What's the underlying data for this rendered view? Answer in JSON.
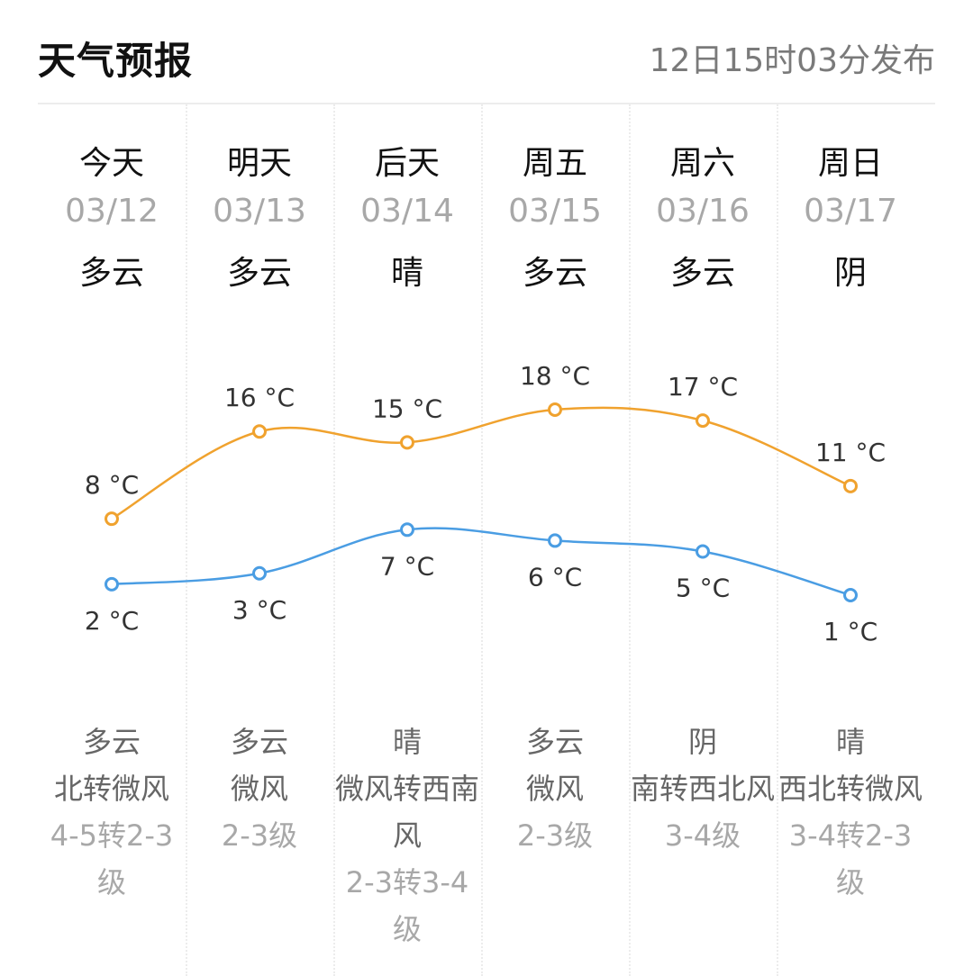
{
  "header": {
    "title": "天气预报",
    "published": "12日15时03分发布"
  },
  "colors": {
    "high": "#f0a22e",
    "low": "#4a9de3"
  },
  "days": [
    {
      "name": "今天",
      "date": "03/12",
      "day_cond": "多云",
      "high": 8,
      "high_label": "8 °C",
      "low": 2,
      "low_label": "2 °C",
      "night_cond": "多云",
      "wind": "北转微风",
      "level": "4-5转2-3级"
    },
    {
      "name": "明天",
      "date": "03/13",
      "day_cond": "多云",
      "high": 16,
      "high_label": "16 °C",
      "low": 3,
      "low_label": "3 °C",
      "night_cond": "多云",
      "wind": "微风",
      "level": "2-3级"
    },
    {
      "name": "后天",
      "date": "03/14",
      "day_cond": "晴",
      "high": 15,
      "high_label": "15 °C",
      "low": 7,
      "low_label": "7 °C",
      "night_cond": "晴",
      "wind": "微风转西南风",
      "level": "2-3转3-4级"
    },
    {
      "name": "周五",
      "date": "03/15",
      "day_cond": "多云",
      "high": 18,
      "high_label": "18 °C",
      "low": 6,
      "low_label": "6 °C",
      "night_cond": "多云",
      "wind": "微风",
      "level": "2-3级"
    },
    {
      "name": "周六",
      "date": "03/16",
      "day_cond": "多云",
      "high": 17,
      "high_label": "17 °C",
      "low": 5,
      "low_label": "5 °C",
      "night_cond": "阴",
      "wind": "南转西北风",
      "level": "3-4级"
    },
    {
      "name": "周日",
      "date": "03/17",
      "day_cond": "阴",
      "high": 11,
      "high_label": "11 °C",
      "low": 1,
      "low_label": "1 °C",
      "night_cond": "晴",
      "wind": "西北转微风",
      "level": "3-4转2-3级"
    }
  ]
}
